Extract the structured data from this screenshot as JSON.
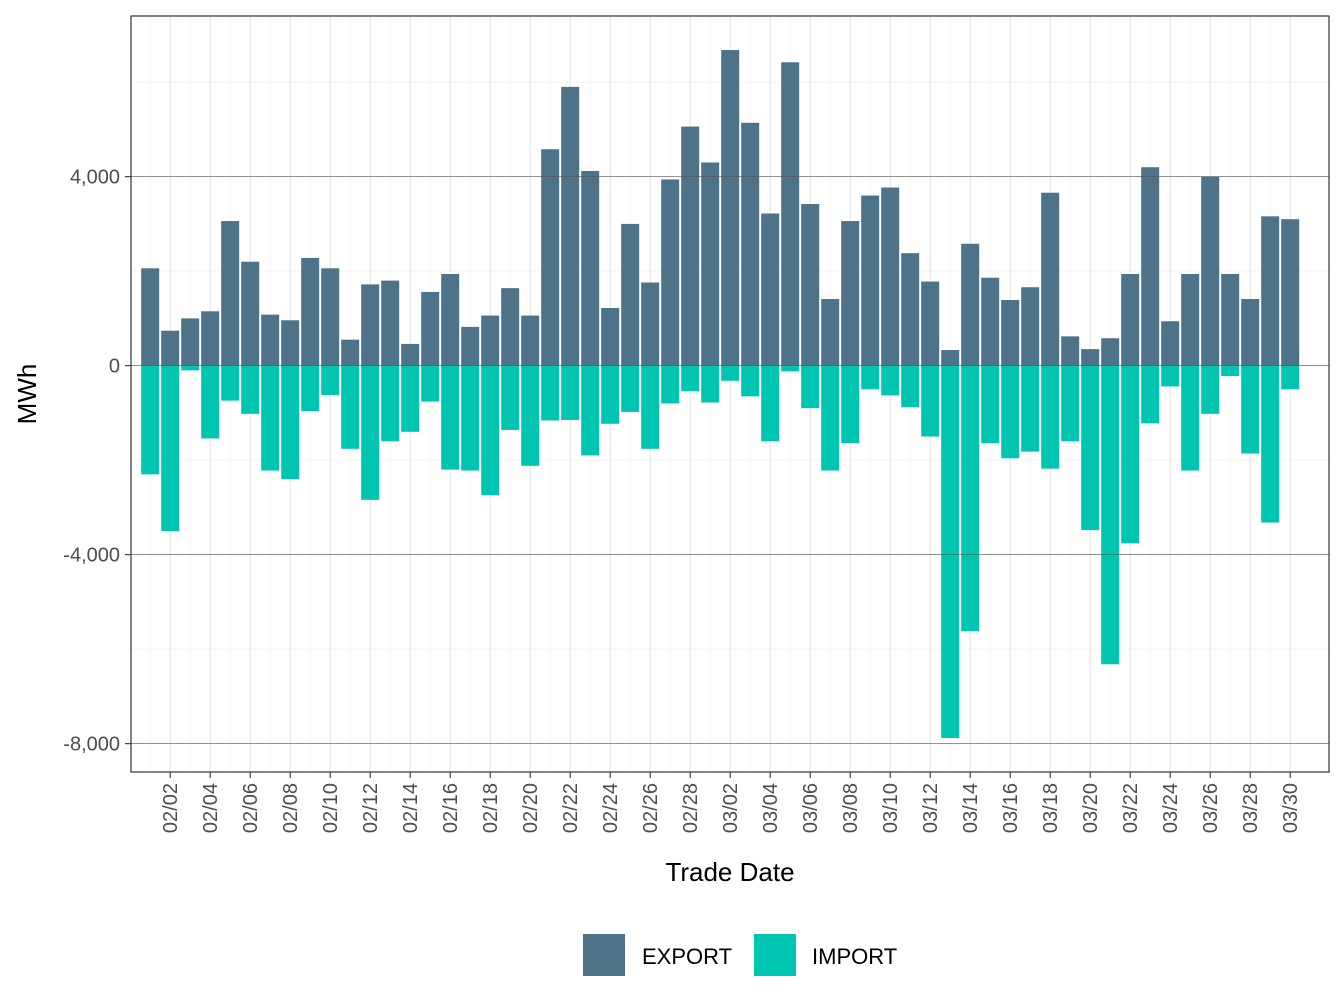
{
  "chart_data": {
    "type": "bar",
    "stacked": true,
    "xlabel": "Trade Date",
    "ylabel": "MWh",
    "ylim": [
      -8600,
      7400
    ],
    "y_ticks": [
      -8000,
      -4000,
      0,
      4000
    ],
    "y_tick_labels": [
      "-8,000",
      "-4,000",
      "0",
      "4,000"
    ],
    "x_tick_labels": [
      "02/02",
      "02/04",
      "02/06",
      "02/08",
      "02/10",
      "02/12",
      "02/14",
      "02/16",
      "02/18",
      "02/20",
      "02/22",
      "02/24",
      "02/26",
      "02/28",
      "03/02",
      "03/04",
      "03/06",
      "03/08",
      "03/10",
      "03/12",
      "03/14",
      "03/16",
      "03/18",
      "03/20",
      "03/22",
      "03/24",
      "03/26",
      "03/28",
      "03/30"
    ],
    "grid": true,
    "legend_position": "bottom",
    "series": [
      {
        "name": "EXPORT",
        "color": "#4e7287",
        "values": [
          2060,
          740,
          1000,
          1150,
          3060,
          2200,
          1080,
          960,
          2280,
          2060,
          550,
          1720,
          1800,
          460,
          1560,
          1940,
          820,
          1060,
          1640,
          1060,
          4580,
          5900,
          4120,
          1220,
          3000,
          1760,
          3940,
          5060,
          4300,
          6680,
          5140,
          3220,
          6420,
          3420,
          1410,
          3060,
          3600,
          3770,
          2380,
          1780,
          330,
          2580,
          1860,
          1390,
          1660,
          3660,
          620,
          350,
          580,
          1940,
          4200,
          940,
          1940,
          4000,
          1940,
          1410,
          3160,
          3100
        ]
      },
      {
        "name": "IMPORT",
        "color": "#00c5b0",
        "values": [
          -2300,
          -3500,
          -100,
          -1540,
          -740,
          -1020,
          -2220,
          -2400,
          -960,
          -620,
          -1760,
          -2840,
          -1600,
          -1400,
          -760,
          -2200,
          -2220,
          -2740,
          -1360,
          -2120,
          -1160,
          -1150,
          -1900,
          -1230,
          -980,
          -1760,
          -800,
          -540,
          -780,
          -320,
          -650,
          -1600,
          -120,
          -900,
          -2220,
          -1640,
          -500,
          -630,
          -880,
          -1500,
          -7880,
          -5620,
          -1640,
          -1960,
          -1820,
          -2180,
          -1600,
          -3480,
          -6320,
          -3760,
          -1220,
          -440,
          -2220,
          -1020,
          -220,
          -1860,
          -3320,
          -500
        ]
      }
    ]
  }
}
